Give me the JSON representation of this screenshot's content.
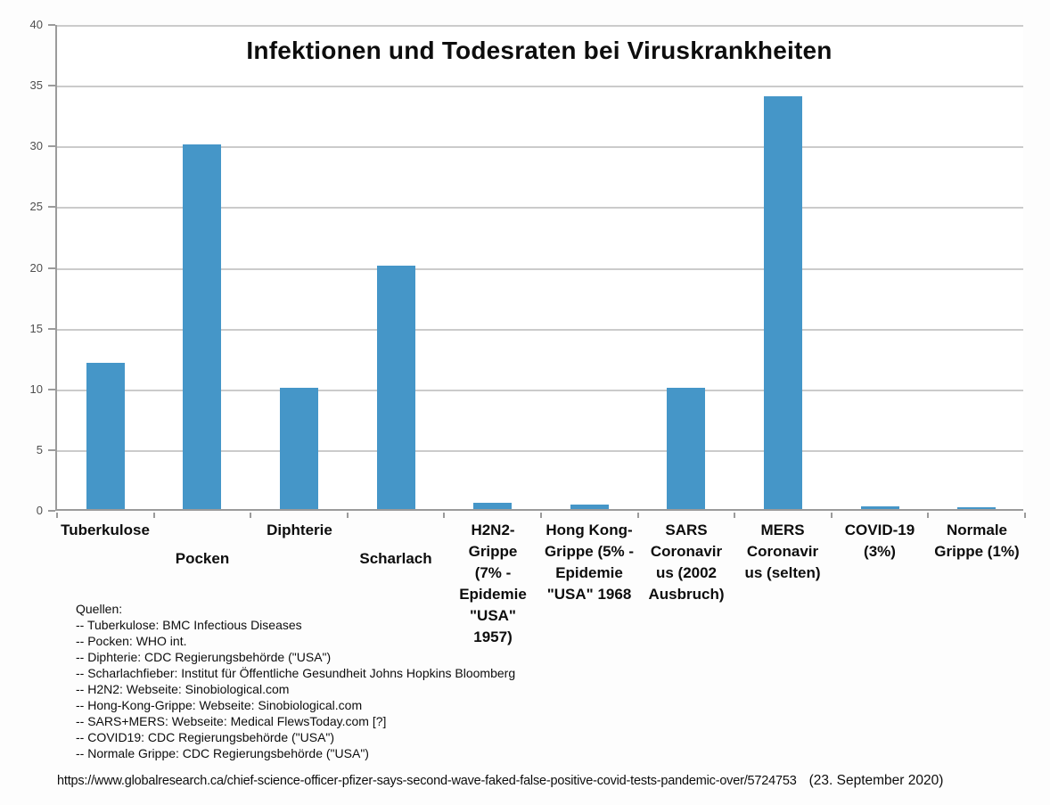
{
  "chart_data": {
    "type": "bar",
    "title": "Infektionen und Todesraten bei Viruskrankheiten",
    "categories": [
      "Tuberkulose",
      "Pocken",
      "Diphterie",
      "Scharlach",
      "H2N2-Grippe (7% - Epidemie \"USA\" 1957)",
      "Hong Kong-Grippe (5% - Epidemie \"USA\" 1968",
      "SARS Coronavirus (2002 Ausbruch)",
      "MERS Coronavirus (selten)",
      "COVID-19 (3%)",
      "Normale Grippe (1%)"
    ],
    "values": [
      12,
      30,
      10,
      20,
      0.5,
      0.4,
      10,
      34,
      0.25,
      0.1
    ],
    "label_lines": [
      [
        "Tuberkulose"
      ],
      [
        "Pocken"
      ],
      [
        "Diphterie"
      ],
      [
        "Scharlach"
      ],
      [
        "H2N2-",
        "Grippe",
        "(7% -",
        "Epidemie",
        "\"USA\"",
        "1957)"
      ],
      [
        "Hong Kong-",
        "Grippe (5% -",
        "Epidemie",
        "\"USA\" 1968"
      ],
      [
        "SARS",
        "Coronavir",
        "us (2002",
        "Ausbruch)"
      ],
      [
        "MERS",
        "Coronavir",
        "us (selten)"
      ],
      [
        "COVID-19",
        "(3%)"
      ],
      [
        "Normale",
        "Grippe (1%)"
      ]
    ],
    "label_row_offsets": [
      0,
      32,
      0,
      32,
      0,
      0,
      0,
      0,
      0,
      0
    ],
    "xlabel": "",
    "ylabel": "",
    "ylim": [
      0,
      40
    ],
    "yticks": [
      0,
      5,
      10,
      15,
      20,
      25,
      30,
      35,
      40
    ],
    "grid": true,
    "legend": false,
    "bar_color": "#4596c8",
    "gridline_color": "#cbcbcb",
    "axis_color": "#9b9b9b"
  },
  "sources": {
    "lines": [
      "Quellen:",
      "-- Tuberkulose: BMC Infectious Diseases",
      "-- Pocken: WHO int.",
      "-- Diphterie: CDC Regierungsbehörde (\"USA\")",
      "-- Scharlachfieber: Institut für Öffentliche Gesundheit Johns Hopkins Bloomberg",
      "-- H2N2: Webseite: Sinobiological.com",
      "-- Hong-Kong-Grippe: Webseite: Sinobiological.com",
      "-- SARS+MERS: Webseite: Medical FlewsToday.com [?]",
      "-- COVID19: CDC Regierungsbehörde (\"USA\")",
      "-- Normale Grippe: CDC Regierungsbehörde (\"USA\")"
    ]
  },
  "footer": {
    "url": "https://www.globalresearch.ca/chief-science-officer-pfizer-says-second-wave-faked-false-positive-covid-tests-pandemic-over/5724753",
    "date": "(23. September 2020)"
  }
}
